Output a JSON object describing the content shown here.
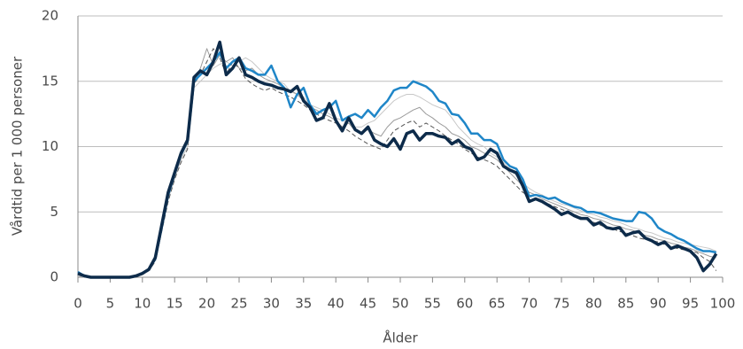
{
  "chart_data": {
    "type": "line",
    "y_label": "Vårdtid per 1 000 personer",
    "x_label": "Ålder",
    "xlim": [
      0,
      100
    ],
    "ylim": [
      0,
      20
    ],
    "xticks": [
      0,
      5,
      10,
      15,
      20,
      25,
      30,
      35,
      40,
      45,
      50,
      55,
      60,
      65,
      70,
      75,
      80,
      85,
      90,
      95,
      100
    ],
    "yticks": [
      0,
      5,
      10,
      15,
      20
    ],
    "grid": true,
    "x": [
      0,
      1,
      2,
      3,
      4,
      5,
      6,
      7,
      8,
      9,
      10,
      11,
      12,
      13,
      14,
      15,
      16,
      17,
      18,
      19,
      20,
      21,
      22,
      23,
      24,
      25,
      26,
      27,
      28,
      29,
      30,
      31,
      32,
      33,
      34,
      35,
      36,
      37,
      38,
      39,
      40,
      41,
      42,
      43,
      44,
      45,
      46,
      47,
      48,
      49,
      50,
      51,
      52,
      53,
      54,
      55,
      56,
      57,
      58,
      59,
      60,
      61,
      62,
      63,
      64,
      65,
      66,
      67,
      68,
      69,
      70,
      71,
      72,
      73,
      74,
      75,
      76,
      77,
      78,
      79,
      80,
      81,
      82,
      83,
      84,
      85,
      86,
      87,
      88,
      89,
      90,
      91,
      92,
      93,
      94,
      95,
      96,
      97,
      98,
      99
    ],
    "series": [
      {
        "color": "#c8c8c8",
        "width": 1,
        "dashed": false,
        "values": [
          0.1,
          0,
          0,
          0,
          0,
          0,
          0,
          0,
          0,
          0.1,
          0.2,
          0.5,
          1.3,
          3.5,
          6,
          7.5,
          9,
          10,
          14.5,
          15,
          15.5,
          16,
          16.3,
          16.5,
          16.2,
          16.5,
          16.8,
          16.5,
          16,
          15.5,
          15.2,
          15,
          14.8,
          14.2,
          14,
          13.8,
          13.2,
          13,
          12.8,
          12.5,
          12.2,
          12,
          11.8,
          11.5,
          11.5,
          11.8,
          12,
          12.5,
          13,
          13.5,
          13.8,
          14,
          14,
          13.8,
          13.5,
          13.2,
          13,
          12.8,
          12.2,
          11.5,
          11,
          10.5,
          10.2,
          10,
          9.5,
          9.2,
          8.8,
          8.2,
          7.8,
          7.2,
          6.8,
          6.5,
          6.3,
          6,
          5.8,
          5.6,
          5.5,
          5.3,
          5.1,
          4.9,
          4.8,
          4.6,
          4.5,
          4.3,
          4.2,
          4,
          3.8,
          3.7,
          3.5,
          3.4,
          3.2,
          3,
          2.9,
          2.7,
          2.6,
          2.5,
          2.4,
          2.3,
          2.2,
          2
        ]
      },
      {
        "color": "#9a9a9a",
        "width": 1,
        "dashed": false,
        "values": [
          0.2,
          0.1,
          0,
          0,
          0,
          0,
          0,
          0,
          0,
          0.1,
          0.3,
          0.7,
          1.6,
          3.8,
          6.2,
          7.8,
          9.2,
          10.3,
          15,
          16,
          17.5,
          16.2,
          17,
          16.5,
          16.8,
          16,
          15.8,
          16,
          15.5,
          15.2,
          15,
          14.8,
          14.5,
          14.3,
          14,
          13.5,
          13,
          12.8,
          12.5,
          12.3,
          12,
          11.5,
          11.8,
          11.2,
          11,
          11.3,
          11,
          10.8,
          11.5,
          12,
          12.2,
          12.5,
          12.8,
          13,
          12.5,
          12.2,
          11.8,
          11.5,
          11,
          10.8,
          10.5,
          10,
          9.8,
          9.5,
          9.3,
          9,
          8.5,
          8,
          7.5,
          7,
          6.5,
          6.3,
          6,
          5.8,
          5.6,
          5.4,
          5.2,
          5,
          4.8,
          4.7,
          4.5,
          4.4,
          4.2,
          4,
          3.9,
          3.7,
          3.6,
          3.4,
          3.2,
          3.1,
          2.9,
          2.8,
          2.6,
          2.5,
          2.3,
          2.2,
          2,
          1.8,
          1.6,
          1.5
        ]
      },
      {
        "color": "#555555",
        "width": 1,
        "dashed": true,
        "values": [
          0.2,
          0,
          0,
          0,
          0,
          0,
          0,
          0,
          0,
          0,
          0.2,
          0.5,
          1.2,
          3.5,
          5.8,
          7.5,
          8.8,
          9.8,
          14.8,
          15.5,
          16.5,
          17.5,
          16.8,
          15.5,
          16.5,
          16,
          15.2,
          14.8,
          14.5,
          14.3,
          14.5,
          14.2,
          14,
          13.8,
          13.5,
          13.2,
          12.8,
          12.5,
          12.2,
          12,
          11.8,
          11.5,
          11.2,
          10.8,
          10.5,
          10.2,
          10,
          9.8,
          10.5,
          11.2,
          11.5,
          11.8,
          12,
          11.5,
          11.8,
          11.5,
          11.2,
          10.8,
          10.5,
          10.2,
          9.8,
          9.5,
          9.2,
          9,
          8.8,
          8.5,
          8,
          7.5,
          7,
          6.5,
          6.2,
          6,
          5.8,
          5.6,
          5.4,
          5.2,
          5,
          4.8,
          4.6,
          4.4,
          4.2,
          4,
          3.8,
          3.7,
          3.5,
          3.4,
          3.2,
          3,
          2.9,
          2.8,
          2.7,
          2.5,
          2.3,
          2.2,
          2.1,
          2,
          1.9,
          1.5,
          1.2,
          0.5
        ]
      },
      {
        "color": "#1f86c8",
        "width": 2.5,
        "dashed": false,
        "values": [
          0.4,
          0.1,
          0,
          0,
          0,
          0,
          0,
          0,
          0,
          0.1,
          0.3,
          0.6,
          1.4,
          3.8,
          6.3,
          7.9,
          9.4,
          10.4,
          15,
          15.5,
          16,
          16.5,
          17.2,
          16,
          16.5,
          16.8,
          16,
          15.8,
          15.5,
          15.5,
          16.2,
          15,
          14.5,
          13,
          14,
          14.5,
          13.2,
          12.5,
          12.8,
          13,
          13.5,
          12,
          12.3,
          12.5,
          12.2,
          12.8,
          12.3,
          13,
          13.5,
          14.3,
          14.5,
          14.5,
          15,
          14.8,
          14.6,
          14.2,
          13.5,
          13.3,
          12.5,
          12.4,
          11.8,
          11,
          11,
          10.5,
          10.5,
          10.2,
          9,
          8.5,
          8.3,
          7.5,
          6.2,
          6.3,
          6.2,
          6,
          6.1,
          5.8,
          5.6,
          5.4,
          5.3,
          5,
          5,
          4.9,
          4.7,
          4.5,
          4.4,
          4.3,
          4.3,
          5,
          4.9,
          4.5,
          3.8,
          3.5,
          3.3,
          3,
          2.8,
          2.5,
          2.2,
          2,
          2,
          1.9
        ]
      },
      {
        "color": "#0d2b4a",
        "width": 3.5,
        "dashed": false,
        "values": [
          0.3,
          0.1,
          0,
          0,
          0,
          0,
          0,
          0,
          0,
          0.1,
          0.3,
          0.6,
          1.5,
          4,
          6.5,
          8,
          9.5,
          10.5,
          15.3,
          15.8,
          15.5,
          16.5,
          18,
          15.5,
          16,
          16.8,
          15.5,
          15.3,
          15,
          14.8,
          14.7,
          14.5,
          14.4,
          14.2,
          14.6,
          13.5,
          13,
          12,
          12.2,
          13.3,
          12,
          11.2,
          12.2,
          11.3,
          11,
          11.5,
          10.5,
          10.2,
          10,
          10.6,
          9.8,
          11,
          11.2,
          10.5,
          11,
          11,
          10.8,
          10.7,
          10.2,
          10.5,
          10,
          9.8,
          9,
          9.2,
          9.8,
          9.5,
          8.5,
          8.2,
          8,
          7,
          5.8,
          6,
          5.8,
          5.5,
          5.2,
          4.8,
          5,
          4.7,
          4.5,
          4.5,
          4,
          4.2,
          3.8,
          3.7,
          3.8,
          3.2,
          3.4,
          3.5,
          3,
          2.8,
          2.5,
          2.7,
          2.2,
          2.4,
          2.2,
          2,
          1.5,
          0.5,
          1,
          1.8
        ]
      }
    ]
  }
}
